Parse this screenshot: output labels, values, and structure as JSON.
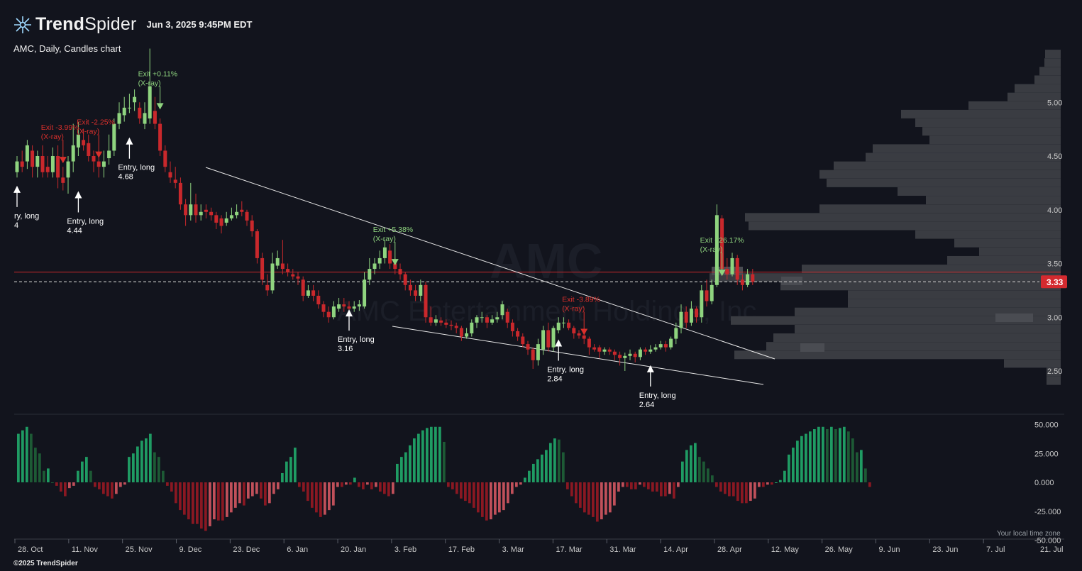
{
  "header": {
    "brand_bold": "Trend",
    "brand_light": "Spider",
    "date": "Jun 3, 2025 9:45PM EDT",
    "subtitle": "AMC, Daily, Candles chart",
    "watermark_ticker": "AMC",
    "watermark_name": "AMC Entertainment Holdings, Inc",
    "timezone_note": "Your local time zone",
    "copyright": "©2025 TrendSpider"
  },
  "colors": {
    "background": "#12141d",
    "up": "#8fd47f",
    "down": "#c9282c",
    "hist_pos_strong": "#1f9b63",
    "hist_pos_weak": "#1d5a35",
    "hist_neg_strong": "#8a1822",
    "hist_neg_weak": "#c0505a",
    "last_price_badge": "#d42a2f",
    "exit_profit": "#8fd47f",
    "exit_loss": "#d9302c"
  },
  "chart_data": {
    "type": "candlestick",
    "symbol": "AMC",
    "interval": "Daily",
    "price_axis": {
      "ticks": [
        "2.50",
        "3.00",
        "3.50",
        "4.00",
        "4.50",
        "5.00"
      ],
      "values": [
        2.5,
        3.0,
        3.5,
        4.0,
        4.5,
        5.0
      ],
      "range": [
        2.3,
        5.55
      ]
    },
    "last_price": {
      "label": "3.33",
      "value": 3.33
    },
    "resistance_line": 3.42,
    "x_axis": {
      "labels": [
        "28. Oct",
        "11. Nov",
        "25. Nov",
        "9. Dec",
        "23. Dec",
        "6. Jan",
        "20. Jan",
        "3. Feb",
        "17. Feb",
        "3. Mar",
        "17. Mar",
        "31. Mar",
        "14. Apr",
        "28. Apr",
        "12. May",
        "26. May",
        "9. Jun",
        "23. Jun",
        "7. Jul",
        "21. Jul"
      ]
    },
    "candles": [
      [
        4.35,
        4.45,
        4.5,
        4.3
      ],
      [
        4.45,
        4.4,
        4.55,
        4.35
      ],
      [
        4.45,
        4.6,
        4.65,
        4.38
      ],
      [
        4.55,
        4.4,
        4.6,
        4.3
      ],
      [
        4.4,
        4.5,
        4.55,
        4.3
      ],
      [
        4.5,
        4.35,
        4.6,
        4.3
      ],
      [
        4.4,
        4.35,
        4.5,
        4.3
      ],
      [
        4.35,
        4.5,
        4.58,
        4.3
      ],
      [
        4.5,
        4.3,
        4.6,
        4.2
      ],
      [
        4.3,
        4.25,
        4.4,
        4.18
      ],
      [
        4.3,
        4.45,
        4.5,
        4.15
      ],
      [
        4.45,
        4.6,
        4.8,
        4.35
      ],
      [
        4.58,
        4.7,
        4.82,
        4.5
      ],
      [
        4.65,
        4.6,
        4.75,
        4.55
      ],
      [
        4.62,
        4.5,
        4.7,
        4.45
      ],
      [
        4.5,
        4.45,
        4.55,
        4.35
      ],
      [
        4.45,
        4.4,
        4.55,
        4.3
      ],
      [
        4.4,
        4.45,
        4.55,
        4.3
      ],
      [
        4.48,
        4.55,
        4.7,
        4.42
      ],
      [
        4.55,
        4.8,
        4.85,
        4.5
      ],
      [
        4.8,
        4.9,
        5.0,
        4.75
      ],
      [
        4.88,
        4.95,
        5.05,
        4.82
      ],
      [
        4.95,
        4.95,
        5.08,
        4.9
      ],
      [
        5.0,
        5.05,
        5.12,
        4.92
      ],
      [
        4.95,
        4.85,
        5.0,
        4.8
      ],
      [
        4.8,
        4.9,
        5.0,
        4.75
      ],
      [
        4.85,
        5.15,
        5.5,
        4.8
      ],
      [
        4.92,
        4.8,
        5.05,
        4.75
      ],
      [
        4.8,
        4.55,
        4.85,
        4.5
      ],
      [
        4.55,
        4.4,
        4.6,
        4.35
      ],
      [
        4.35,
        4.3,
        4.45,
        4.25
      ],
      [
        4.28,
        4.25,
        4.4,
        4.2
      ],
      [
        4.25,
        4.05,
        4.3,
        4.0
      ],
      [
        4.05,
        3.95,
        4.1,
        3.85
      ],
      [
        3.95,
        4.05,
        4.25,
        3.9
      ],
      [
        4.05,
        3.95,
        4.15,
        3.88
      ],
      [
        3.95,
        3.98,
        4.05,
        3.9
      ],
      [
        4.0,
        3.98,
        4.05,
        3.92
      ],
      [
        3.98,
        3.95,
        4.02,
        3.9
      ],
      [
        3.95,
        3.88,
        3.98,
        3.82
      ],
      [
        3.92,
        3.85,
        3.95,
        3.78
      ],
      [
        3.88,
        3.92,
        3.98,
        3.85
      ],
      [
        3.92,
        3.95,
        4.02,
        3.9
      ],
      [
        3.95,
        3.98,
        4.05,
        3.92
      ],
      [
        4.0,
        3.98,
        4.08,
        3.94
      ],
      [
        3.98,
        3.9,
        4.0,
        3.85
      ],
      [
        3.9,
        3.8,
        3.95,
        3.75
      ],
      [
        3.8,
        3.55,
        3.82,
        3.5
      ],
      [
        3.55,
        3.35,
        3.6,
        3.3
      ],
      [
        3.3,
        3.25,
        3.4,
        3.2
      ],
      [
        3.25,
        3.5,
        3.6,
        3.22
      ],
      [
        3.48,
        3.55,
        3.62,
        3.45
      ],
      [
        3.5,
        3.45,
        3.72,
        3.4
      ],
      [
        3.45,
        3.42,
        3.5,
        3.38
      ],
      [
        3.4,
        3.38,
        3.45,
        3.35
      ],
      [
        3.38,
        3.36,
        3.42,
        3.3
      ],
      [
        3.35,
        3.2,
        3.38,
        3.15
      ],
      [
        3.2,
        3.25,
        3.3,
        3.18
      ],
      [
        3.25,
        3.2,
        3.3,
        3.15
      ],
      [
        3.2,
        3.12,
        3.25,
        3.08
      ],
      [
        3.12,
        3.05,
        3.15,
        3.0
      ],
      [
        3.05,
        3.0,
        3.1,
        2.95
      ],
      [
        3.0,
        3.1,
        3.15,
        2.98
      ],
      [
        3.08,
        3.12,
        3.18,
        3.05
      ],
      [
        3.12,
        3.1,
        3.18,
        3.05
      ],
      [
        3.1,
        3.08,
        3.15,
        3.05
      ],
      [
        3.08,
        3.1,
        3.15,
        3.05
      ],
      [
        3.1,
        3.12,
        3.16,
        3.06
      ],
      [
        3.1,
        3.35,
        3.42,
        3.08
      ],
      [
        3.35,
        3.45,
        3.55,
        3.3
      ],
      [
        3.45,
        3.5,
        3.55,
        3.4
      ],
      [
        3.5,
        3.55,
        3.62,
        3.45
      ],
      [
        3.55,
        3.65,
        3.72,
        3.5
      ],
      [
        3.62,
        3.5,
        3.68,
        3.45
      ],
      [
        3.5,
        3.45,
        3.55,
        3.4
      ],
      [
        3.45,
        3.4,
        3.5,
        3.35
      ],
      [
        3.4,
        3.3,
        3.42,
        3.25
      ],
      [
        3.3,
        3.25,
        3.35,
        3.2
      ],
      [
        3.25,
        3.2,
        3.3,
        3.15
      ],
      [
        3.2,
        3.3,
        3.35,
        3.15
      ],
      [
        3.3,
        3.0,
        3.33,
        2.95
      ],
      [
        3.0,
        2.95,
        3.1,
        2.92
      ],
      [
        2.95,
        2.98,
        3.02,
        2.92
      ],
      [
        2.97,
        2.95,
        3.0,
        2.92
      ],
      [
        2.95,
        2.93,
        2.98,
        2.9
      ],
      [
        2.93,
        2.92,
        2.97,
        2.88
      ],
      [
        2.92,
        2.9,
        2.95,
        2.85
      ],
      [
        2.9,
        2.82,
        2.92,
        2.78
      ],
      [
        2.82,
        2.85,
        2.9,
        2.8
      ],
      [
        2.85,
        2.95,
        2.98,
        2.82
      ],
      [
        2.95,
        3.0,
        3.02,
        2.9
      ],
      [
        3.0,
        3.0,
        3.05,
        2.95
      ],
      [
        3.0,
        2.95,
        3.02,
        2.9
      ],
      [
        2.95,
        2.98,
        3.02,
        2.93
      ],
      [
        2.98,
        3.0,
        3.05,
        2.95
      ],
      [
        3.02,
        3.12,
        3.15,
        2.98
      ],
      [
        3.05,
        2.95,
        3.08,
        2.9
      ],
      [
        2.95,
        2.87,
        2.98,
        2.82
      ],
      [
        2.87,
        2.82,
        2.9,
        2.78
      ],
      [
        2.82,
        2.75,
        2.85,
        2.72
      ],
      [
        2.75,
        2.7,
        2.78,
        2.65
      ],
      [
        2.7,
        2.6,
        2.72,
        2.52
      ],
      [
        2.6,
        2.75,
        2.8,
        2.55
      ],
      [
        2.7,
        2.88,
        2.92,
        2.65
      ],
      [
        2.88,
        2.72,
        2.95,
        2.68
      ],
      [
        2.72,
        2.9,
        2.92,
        2.68
      ],
      [
        2.88,
        2.95,
        3.0,
        2.85
      ],
      [
        2.95,
        2.95,
        3.0,
        2.9
      ],
      [
        2.95,
        2.9,
        2.98,
        2.88
      ],
      [
        2.9,
        2.85,
        2.92,
        2.8
      ],
      [
        2.85,
        2.83,
        2.88,
        2.8
      ],
      [
        2.83,
        2.8,
        2.86,
        2.75
      ],
      [
        2.8,
        2.72,
        2.82,
        2.65
      ],
      [
        2.72,
        2.7,
        2.75,
        2.68
      ],
      [
        2.72,
        2.68,
        2.74,
        2.62
      ],
      [
        2.68,
        2.7,
        2.72,
        2.65
      ],
      [
        2.7,
        2.68,
        2.72,
        2.65
      ],
      [
        2.68,
        2.65,
        2.7,
        2.6
      ],
      [
        2.65,
        2.62,
        2.68,
        2.55
      ],
      [
        2.62,
        2.64,
        2.67,
        2.5
      ],
      [
        2.64,
        2.66,
        2.7,
        2.6
      ],
      [
        2.66,
        2.63,
        2.68,
        2.58
      ],
      [
        2.63,
        2.7,
        2.72,
        2.6
      ],
      [
        2.7,
        2.68,
        2.72,
        2.65
      ],
      [
        2.68,
        2.7,
        2.74,
        2.66
      ],
      [
        2.7,
        2.72,
        2.75,
        2.68
      ],
      [
        2.72,
        2.75,
        2.78,
        2.7
      ],
      [
        2.75,
        2.72,
        2.78,
        2.68
      ],
      [
        2.72,
        2.8,
        2.82,
        2.7
      ],
      [
        2.8,
        2.9,
        2.95,
        2.75
      ],
      [
        2.9,
        3.05,
        3.12,
        2.85
      ],
      [
        3.05,
        2.95,
        3.1,
        2.9
      ],
      [
        2.95,
        3.08,
        3.15,
        2.92
      ],
      [
        3.08,
        3.0,
        3.1,
        2.95
      ],
      [
        3.0,
        3.25,
        3.3,
        2.95
      ],
      [
        3.25,
        3.15,
        3.35,
        3.1
      ],
      [
        3.15,
        3.3,
        3.35,
        3.12
      ],
      [
        3.3,
        3.95,
        4.05,
        3.28
      ],
      [
        3.92,
        3.45,
        3.95,
        3.4
      ],
      [
        3.45,
        3.4,
        3.55,
        3.35
      ],
      [
        3.4,
        3.55,
        3.6,
        3.38
      ],
      [
        3.55,
        3.35,
        3.58,
        3.3
      ],
      [
        3.35,
        3.3,
        3.4,
        3.25
      ],
      [
        3.3,
        3.4,
        3.45,
        3.28
      ],
      [
        3.4,
        3.33,
        3.45,
        3.3
      ]
    ],
    "volume_profile": [
      {
        "price": 5.45,
        "w": 22
      },
      {
        "price": 5.37,
        "w": 23
      },
      {
        "price": 5.29,
        "w": 30
      },
      {
        "price": 5.21,
        "w": 37
      },
      {
        "price": 5.13,
        "w": 65
      },
      {
        "price": 5.05,
        "w": 75
      },
      {
        "price": 4.97,
        "w": 130
      },
      {
        "price": 4.89,
        "w": 225
      },
      {
        "price": 4.81,
        "w": 205
      },
      {
        "price": 4.73,
        "w": 195
      },
      {
        "price": 4.65,
        "w": 185
      },
      {
        "price": 4.57,
        "w": 265
      },
      {
        "price": 4.49,
        "w": 275
      },
      {
        "price": 4.41,
        "w": 320
      },
      {
        "price": 4.33,
        "w": 340
      },
      {
        "price": 4.25,
        "w": 330
      },
      {
        "price": 4.17,
        "w": 230
      },
      {
        "price": 4.09,
        "w": 190
      },
      {
        "price": 4.01,
        "w": 340
      },
      {
        "price": 3.93,
        "w": 445
      },
      {
        "price": 3.85,
        "w": 440
      },
      {
        "price": 3.77,
        "w": 205
      },
      {
        "price": 3.69,
        "w": 150
      },
      {
        "price": 3.61,
        "w": 115
      },
      {
        "price": 3.53,
        "w": 160
      },
      {
        "price": 3.45,
        "w": 365
      },
      {
        "price": 3.37,
        "w": 495
      },
      {
        "price": 3.29,
        "w": 395
      },
      {
        "price": 3.21,
        "w": 300
      },
      {
        "price": 3.13,
        "w": 300
      },
      {
        "price": 3.05,
        "w": 375
      },
      {
        "price": 2.97,
        "w": 465
      },
      {
        "price": 2.89,
        "w": 375
      },
      {
        "price": 2.81,
        "w": 405
      },
      {
        "price": 2.73,
        "w": 415
      },
      {
        "price": 2.65,
        "w": 460
      },
      {
        "price": 2.57,
        "w": 80
      },
      {
        "price": 2.49,
        "w": 20
      },
      {
        "price": 2.41,
        "w": 20
      }
    ],
    "oscillator": {
      "axis_ticks": [
        "50.000",
        "25.000",
        "0.000",
        "-25.000",
        "-50.000"
      ],
      "values": [
        42,
        45,
        48,
        42,
        30,
        25,
        10,
        12,
        0,
        -3,
        -8,
        -12,
        -5,
        -3,
        10,
        18,
        22,
        10,
        -4,
        -6,
        -10,
        -12,
        -14,
        -10,
        -4,
        -2,
        22,
        25,
        31,
        36,
        38,
        42,
        26,
        22,
        10,
        -3,
        -8,
        -18,
        -24,
        -28,
        -32,
        -36,
        -36,
        -40,
        -42,
        -38,
        -32,
        -33,
        -33,
        -30,
        -26,
        -22,
        -18,
        -20,
        -14,
        -12,
        -10,
        -14,
        -20,
        -18,
        -10,
        -6,
        8,
        18,
        22,
        30,
        -4,
        -8,
        -16,
        -22,
        -26,
        -30,
        -28,
        -24,
        -20,
        -4,
        -4,
        -2,
        -2,
        4,
        -4,
        -6,
        -2,
        -6,
        -4,
        -8,
        -10,
        -12,
        -10,
        16,
        22,
        26,
        32,
        38,
        42,
        45,
        47,
        48,
        48,
        48,
        35,
        -4,
        -6,
        -10,
        -14,
        -16,
        -18,
        -22,
        -26,
        -30,
        -33,
        -32,
        -28,
        -26,
        -24,
        -18,
        -10,
        -4,
        -2,
        4,
        10,
        16,
        20,
        24,
        28,
        34,
        38,
        37,
        26,
        -6,
        -12,
        -18,
        -22,
        -26,
        -28,
        -30,
        -34,
        -32,
        -28,
        -26,
        -20,
        -8,
        -4,
        -4,
        -6,
        -6,
        -2,
        -4,
        -6,
        -8,
        -8,
        -12,
        -12,
        -10,
        -14,
        -4,
        18,
        28,
        32,
        34,
        22,
        18,
        12,
        6,
        -4,
        -8,
        -10,
        -12,
        -12,
        -16,
        -18,
        -18,
        -16,
        -14,
        -4,
        -4,
        -2,
        -2,
        0,
        2,
        10,
        24,
        30,
        36,
        40,
        42,
        44,
        46,
        48,
        48,
        46,
        48,
        46,
        47,
        48,
        44,
        38,
        26,
        28,
        12,
        -4
      ]
    },
    "annotations": [
      {
        "kind": "entry",
        "label": "Entry, long",
        "value": "4",
        "text": "ry, long",
        "idx": 0,
        "price": 4.25
      },
      {
        "kind": "entry",
        "label": "Entry, long",
        "value": "4.44",
        "idx": 12,
        "price": 4.2
      },
      {
        "kind": "entry",
        "label": "Entry, long",
        "value": "4.68",
        "idx": 22,
        "price": 4.7
      },
      {
        "kind": "entry",
        "label": "Entry, long",
        "value": "3.16",
        "idx": 65,
        "price": 3.1
      },
      {
        "kind": "entry",
        "label": "Entry, long",
        "value": "2.84",
        "idx": 106,
        "price": 2.82
      },
      {
        "kind": "entry",
        "label": "Entry, long",
        "value": "2.64",
        "idx": 124,
        "price": 2.58
      },
      {
        "kind": "exit",
        "label": "Exit -3.99%",
        "sub": "(X-ray)",
        "idx": 9,
        "price": 4.4,
        "loss": true
      },
      {
        "kind": "exit",
        "label": "Exit -2.25%",
        "sub": "(X-ray)",
        "idx": 16,
        "price": 4.45,
        "loss": true
      },
      {
        "kind": "exit",
        "label": "Exit +0.11%",
        "sub": "(X-ray)",
        "idx": 28,
        "price": 4.9,
        "loss": false
      },
      {
        "kind": "exit",
        "label": "Exit +5.38%",
        "sub": "(X-ray)",
        "idx": 74,
        "price": 3.45,
        "loss": false
      },
      {
        "kind": "exit",
        "label": "Exit -3.89%",
        "sub": "(X-ray)",
        "idx": 111,
        "price": 2.8,
        "loss": true
      },
      {
        "kind": "exit",
        "label": "Exit +26.17%",
        "sub": "(X-ray)",
        "idx": 138,
        "price": 3.35,
        "loss": false
      }
    ],
    "trendlines": [
      {
        "from": [
          290,
          236
        ],
        "to": [
          1092,
          506
        ]
      },
      {
        "from": [
          553,
          460
        ],
        "to": [
          1076,
          542
        ]
      }
    ]
  }
}
